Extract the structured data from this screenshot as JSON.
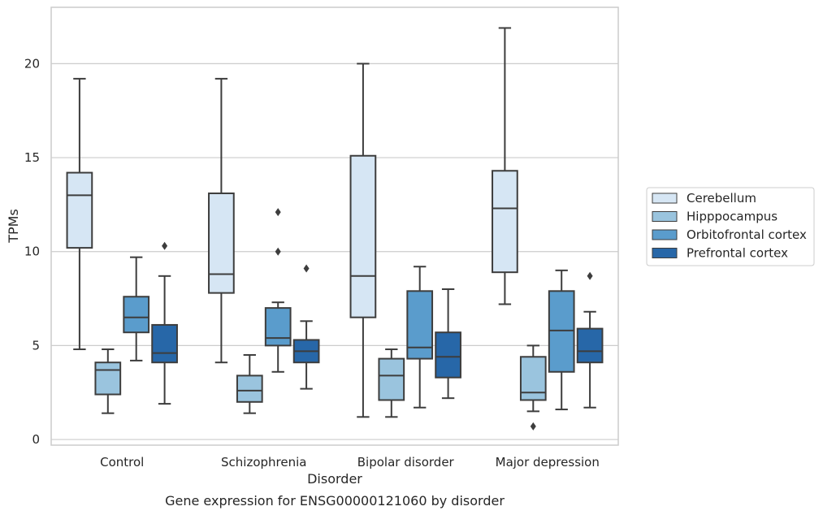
{
  "chart_data": {
    "type": "boxplot",
    "title": "Gene expression for ENSG00000121060 by disorder",
    "xlabel": "Disorder",
    "ylabel": "TPMs",
    "ylim": [
      -0.3,
      23.0
    ],
    "yticks": [
      0,
      5,
      10,
      15,
      20
    ],
    "grid": "horizontal",
    "legend_position": "right",
    "categories": [
      "Control",
      "Schizophrenia",
      "Bipolar disorder",
      "Major depression"
    ],
    "series": [
      {
        "name": "Cerebellum",
        "color": "#d6e6f4",
        "boxes": [
          {
            "whislo": 4.8,
            "q1": 10.2,
            "med": 13.0,
            "q3": 14.2,
            "whishi": 19.2,
            "fliers": []
          },
          {
            "whislo": 4.1,
            "q1": 7.8,
            "med": 8.8,
            "q3": 13.1,
            "whishi": 19.2,
            "fliers": []
          },
          {
            "whislo": 1.2,
            "q1": 6.5,
            "med": 8.7,
            "q3": 15.1,
            "whishi": 20.0,
            "fliers": []
          },
          {
            "whislo": 7.2,
            "q1": 8.9,
            "med": 12.3,
            "q3": 14.3,
            "whishi": 21.9,
            "fliers": []
          }
        ]
      },
      {
        "name": "Hipppocampus",
        "color": "#9ac4de",
        "boxes": [
          {
            "whislo": 1.4,
            "q1": 2.4,
            "med": 3.7,
            "q3": 4.1,
            "whishi": 4.8,
            "fliers": []
          },
          {
            "whislo": 1.4,
            "q1": 2.0,
            "med": 2.6,
            "q3": 3.4,
            "whishi": 4.5,
            "fliers": []
          },
          {
            "whislo": 1.2,
            "q1": 2.1,
            "med": 3.4,
            "q3": 4.3,
            "whishi": 4.8,
            "fliers": []
          },
          {
            "whislo": 1.5,
            "q1": 2.1,
            "med": 2.5,
            "q3": 4.4,
            "whishi": 5.0,
            "fliers": [
              0.7
            ]
          }
        ]
      },
      {
        "name": "Orbitofrontal cortex",
        "color": "#5a9ccc",
        "boxes": [
          {
            "whislo": 4.2,
            "q1": 5.7,
            "med": 6.5,
            "q3": 7.6,
            "whishi": 9.7,
            "fliers": []
          },
          {
            "whislo": 3.6,
            "q1": 5.0,
            "med": 5.4,
            "q3": 7.0,
            "whishi": 7.3,
            "fliers": [
              12.1,
              10.0
            ]
          },
          {
            "whislo": 1.7,
            "q1": 4.3,
            "med": 4.9,
            "q3": 7.9,
            "whishi": 9.2,
            "fliers": []
          },
          {
            "whislo": 1.6,
            "q1": 3.6,
            "med": 5.8,
            "q3": 7.9,
            "whishi": 9.0,
            "fliers": []
          }
        ]
      },
      {
        "name": "Prefrontal cortex",
        "color": "#2767a8",
        "boxes": [
          {
            "whislo": 1.9,
            "q1": 4.1,
            "med": 4.6,
            "q3": 6.1,
            "whishi": 8.7,
            "fliers": [
              10.3
            ]
          },
          {
            "whislo": 2.7,
            "q1": 4.1,
            "med": 4.7,
            "q3": 5.3,
            "whishi": 6.3,
            "fliers": [
              9.1
            ]
          },
          {
            "whislo": 2.2,
            "q1": 3.3,
            "med": 4.4,
            "q3": 5.7,
            "whishi": 8.0,
            "fliers": []
          },
          {
            "whislo": 1.7,
            "q1": 4.1,
            "med": 4.7,
            "q3": 5.9,
            "whishi": 6.8,
            "fliers": [
              8.7
            ]
          }
        ]
      }
    ]
  }
}
